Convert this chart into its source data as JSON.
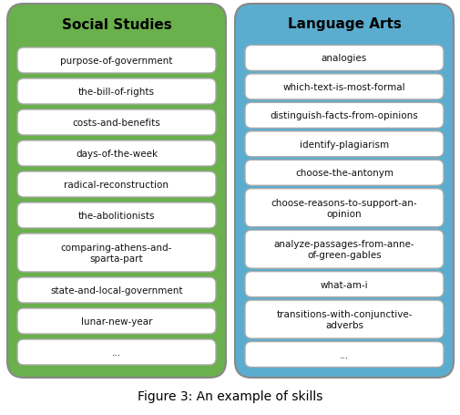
{
  "social_studies_title": "Social Studies",
  "language_arts_title": "Language Arts",
  "social_studies_items": [
    "purpose-of-government",
    "the-bill-of-rights",
    "costs-and-benefits",
    "days-of-the-week",
    "radical-reconstruction",
    "the-abolitionists",
    "comparing-athens-and-\nsparta-part",
    "state-and-local-government",
    "lunar-new-year",
    "..."
  ],
  "language_arts_items": [
    "analogies",
    "which-text-is-most-formal",
    "distinguish-facts-from-opinions",
    "identify-plagiarism",
    "choose-the-antonym",
    "choose-reasons-to-support-an-\nopinion",
    "analyze-passages-from-anne-\nof-green-gables",
    "what-am-i",
    "transitions-with-conjunctive-\nadverbs",
    "..."
  ],
  "ss_bg_color": "#6ab04c",
  "la_bg_color": "#5badcf",
  "box_facecolor": "#ffffff",
  "box_edgecolor": "#aaaaaa",
  "title_color": "#000000",
  "item_text_color": "#111111",
  "caption": "Figure 3: An example of skills",
  "fig_width": 5.06,
  "fig_height": 4.56,
  "dpi": 100
}
